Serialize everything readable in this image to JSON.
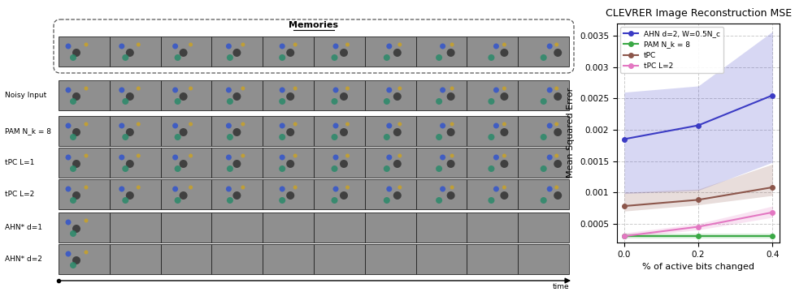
{
  "image_panel": {
    "title": "Memories",
    "rows": [
      "Noisy Input",
      "PAM N_k = 8",
      "tPC L=1",
      "tPC L=2",
      "AHN* d=1",
      "AHN* d=2"
    ],
    "axis_label": "time"
  },
  "chart_data": {
    "type": "line",
    "title": "CLEVRER Image Reconstruction MSE",
    "x_label": "% of active bits changed",
    "y_label": "Mean Squared Error",
    "x": [
      0.0,
      0.2,
      0.4
    ],
    "xlim": [
      -0.02,
      0.42
    ],
    "xticks": [
      0.0,
      0.2,
      0.4
    ],
    "ylim": [
      0.0002,
      0.0037
    ],
    "yticks": [
      0.0005,
      0.001,
      0.0015,
      0.002,
      0.0025,
      0.003,
      0.0035
    ],
    "grid": true,
    "legend": "upper left",
    "series": [
      {
        "name": "AHN d=2, W=0.5N_c",
        "color": "#3b3bc4",
        "marker": "o",
        "values": [
          0.00185,
          0.00207,
          0.00255
        ],
        "lower": [
          0.00098,
          0.00103,
          0.00148
        ],
        "upper": [
          0.0026,
          0.0027,
          0.00357
        ]
      },
      {
        "name": "PAM N_k = 8",
        "color": "#3aa845",
        "marker": "o",
        "values": [
          0.0003,
          0.0003,
          0.0003
        ],
        "lower": [
          0.00026,
          0.00026,
          0.00026
        ],
        "upper": [
          0.00034,
          0.00034,
          0.00034
        ]
      },
      {
        "name": "tPC",
        "color": "#8c564b",
        "marker": "o",
        "values": [
          0.00078,
          0.00088,
          0.00108
        ],
        "lower": [
          0.0007,
          0.0008,
          0.00095
        ],
        "upper": [
          0.001,
          0.00105,
          0.00145
        ]
      },
      {
        "name": "tPC L=2",
        "color": "#e377c2",
        "marker": "o",
        "values": [
          0.0003,
          0.00045,
          0.00068
        ],
        "lower": [
          0.00028,
          0.0004,
          0.0006
        ],
        "upper": [
          0.00035,
          0.0005,
          0.00078
        ]
      }
    ]
  }
}
